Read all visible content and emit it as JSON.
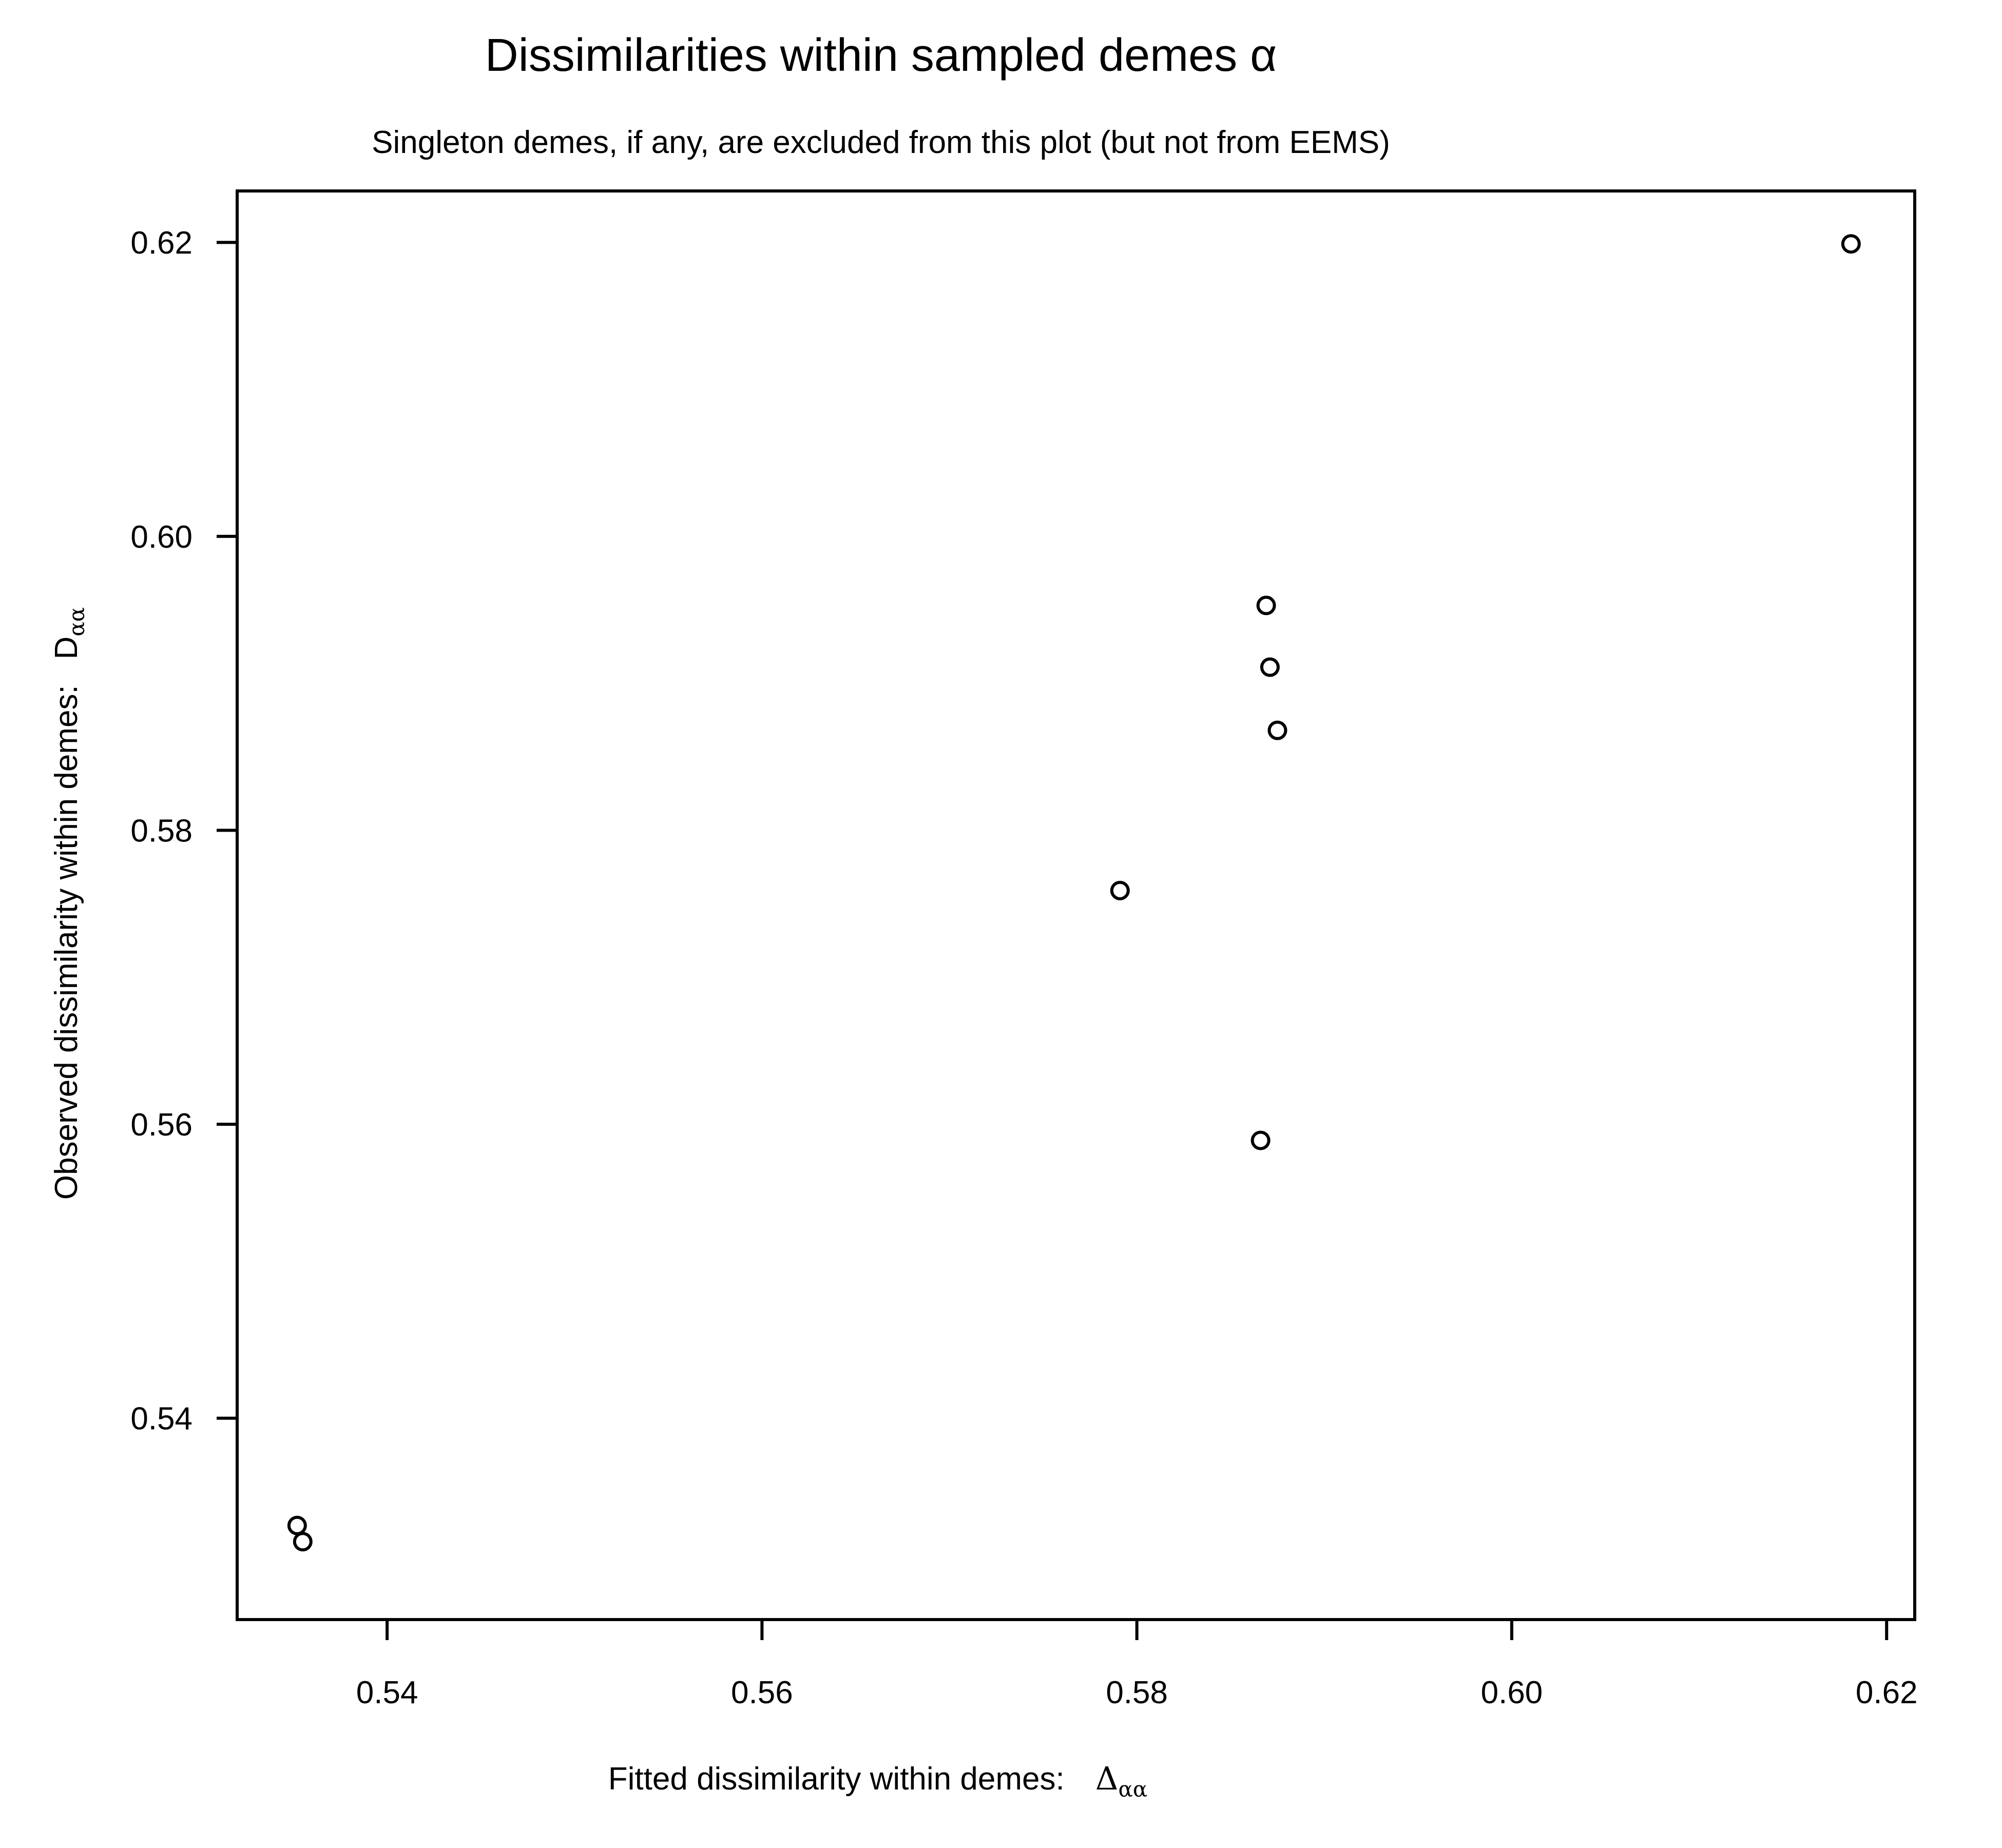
{
  "chart_data": {
    "type": "scatter",
    "title": "Dissimilarities within sampled demes α",
    "subtitle": "Singleton demes, if any, are excluded from this plot (but not from EEMS)",
    "xlabel": {
      "text": "Fitted dissimilarity within demes:",
      "symbol": "Δ",
      "sub": "αα"
    },
    "ylabel": {
      "text": "Observed dissimilarity within demes:",
      "symbol": "D",
      "sub": "αα"
    },
    "xlim": [
      0.532,
      0.6215
    ],
    "ylim": [
      0.5263,
      0.6235
    ],
    "xticks": [
      0.54,
      0.56,
      0.58,
      0.6,
      0.62
    ],
    "xtick_labels": [
      "0.54",
      "0.56",
      "0.58",
      "0.60",
      "0.62"
    ],
    "yticks": [
      0.54,
      0.56,
      0.58,
      0.6,
      0.62
    ],
    "ytick_labels": [
      "0.54",
      "0.56",
      "0.58",
      "0.60",
      "0.62"
    ],
    "grid": false,
    "marker": "open-circle",
    "color": "#000000",
    "points": [
      {
        "x": 0.5352,
        "y": 0.5327
      },
      {
        "x": 0.5355,
        "y": 0.5316
      },
      {
        "x": 0.5791,
        "y": 0.5759
      },
      {
        "x": 0.5866,
        "y": 0.5589
      },
      {
        "x": 0.5869,
        "y": 0.5953
      },
      {
        "x": 0.5871,
        "y": 0.5911
      },
      {
        "x": 0.5875,
        "y": 0.5868
      },
      {
        "x": 0.6181,
        "y": 0.6199
      }
    ]
  }
}
